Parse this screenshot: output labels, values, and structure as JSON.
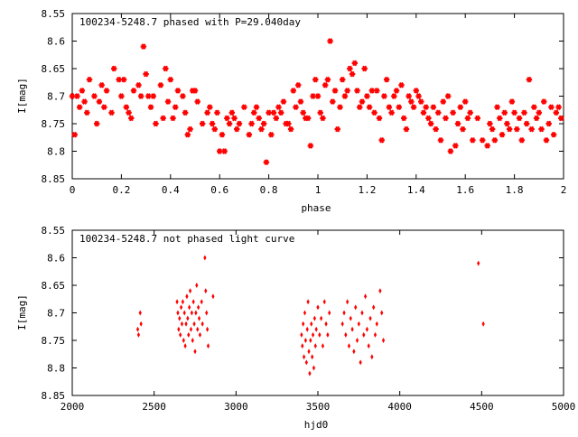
{
  "colors": {
    "points": "#ff0000",
    "axes": "#000000",
    "background": "#ffffff"
  },
  "chart_data": [
    {
      "type": "scatter",
      "title": "100234-5248.7 phased with P=29.040day",
      "xlabel": "phase",
      "ylabel": "I[mag]",
      "xlim": [
        0,
        2
      ],
      "ylim": [
        8.85,
        8.55
      ],
      "y_inverted": true,
      "grid": false,
      "xticks": [
        "0",
        "0.2",
        "0.4",
        "0.6",
        "0.8",
        "1",
        "1.2",
        "1.4",
        "1.6",
        "1.8",
        "2"
      ],
      "yticks": [
        "8.55",
        "8.6",
        "8.65",
        "8.7",
        "8.75",
        "8.8",
        "8.85"
      ],
      "points": [
        [
          0.0,
          8.7
        ],
        [
          0.01,
          8.77
        ],
        [
          0.02,
          8.7
        ],
        [
          0.03,
          8.72
        ],
        [
          0.04,
          8.69
        ],
        [
          0.05,
          8.71
        ],
        [
          0.06,
          8.73
        ],
        [
          0.07,
          8.67
        ],
        [
          0.09,
          8.7
        ],
        [
          0.1,
          8.75
        ],
        [
          0.11,
          8.71
        ],
        [
          0.12,
          8.68
        ],
        [
          0.13,
          8.72
        ],
        [
          0.14,
          8.69
        ],
        [
          0.16,
          8.73
        ],
        [
          0.17,
          8.65
        ],
        [
          0.19,
          8.67
        ],
        [
          0.2,
          8.7
        ],
        [
          0.21,
          8.67
        ],
        [
          0.22,
          8.72
        ],
        [
          0.23,
          8.73
        ],
        [
          0.24,
          8.74
        ],
        [
          0.25,
          8.69
        ],
        [
          0.27,
          8.68
        ],
        [
          0.28,
          8.7
        ],
        [
          0.29,
          8.61
        ],
        [
          0.3,
          8.66
        ],
        [
          0.31,
          8.7
        ],
        [
          0.32,
          8.72
        ],
        [
          0.33,
          8.7
        ],
        [
          0.34,
          8.75
        ],
        [
          0.36,
          8.68
        ],
        [
          0.37,
          8.74
        ],
        [
          0.38,
          8.65
        ],
        [
          0.39,
          8.71
        ],
        [
          0.4,
          8.67
        ],
        [
          0.41,
          8.74
        ],
        [
          0.42,
          8.72
        ],
        [
          0.43,
          8.69
        ],
        [
          0.45,
          8.7
        ],
        [
          0.46,
          8.73
        ],
        [
          0.47,
          8.77
        ],
        [
          0.48,
          8.76
        ],
        [
          0.49,
          8.69
        ],
        [
          0.5,
          8.69
        ],
        [
          0.51,
          8.71
        ],
        [
          0.53,
          8.75
        ],
        [
          0.55,
          8.73
        ],
        [
          0.56,
          8.72
        ],
        [
          0.57,
          8.75
        ],
        [
          0.58,
          8.76
        ],
        [
          0.59,
          8.73
        ],
        [
          0.6,
          8.8
        ],
        [
          0.61,
          8.77
        ],
        [
          0.62,
          8.8
        ],
        [
          0.63,
          8.74
        ],
        [
          0.64,
          8.75
        ],
        [
          0.65,
          8.73
        ],
        [
          0.66,
          8.74
        ],
        [
          0.67,
          8.76
        ],
        [
          0.68,
          8.75
        ],
        [
          0.7,
          8.72
        ],
        [
          0.72,
          8.77
        ],
        [
          0.73,
          8.75
        ],
        [
          0.74,
          8.73
        ],
        [
          0.75,
          8.72
        ],
        [
          0.76,
          8.74
        ],
        [
          0.77,
          8.76
        ],
        [
          0.78,
          8.75
        ],
        [
          0.79,
          8.82
        ],
        [
          0.8,
          8.73
        ],
        [
          0.81,
          8.77
        ],
        [
          0.82,
          8.73
        ],
        [
          0.83,
          8.74
        ],
        [
          0.84,
          8.72
        ],
        [
          0.85,
          8.73
        ],
        [
          0.86,
          8.71
        ],
        [
          0.87,
          8.75
        ],
        [
          0.88,
          8.75
        ],
        [
          0.89,
          8.76
        ],
        [
          0.9,
          8.69
        ],
        [
          0.91,
          8.72
        ],
        [
          0.92,
          8.68
        ],
        [
          0.93,
          8.71
        ],
        [
          0.94,
          8.73
        ],
        [
          0.95,
          8.74
        ],
        [
          0.96,
          8.74
        ],
        [
          0.97,
          8.79
        ],
        [
          0.98,
          8.7
        ],
        [
          0.99,
          8.67
        ],
        [
          1.0,
          8.7
        ],
        [
          1.01,
          8.73
        ],
        [
          1.02,
          8.74
        ],
        [
          1.03,
          8.68
        ],
        [
          1.04,
          8.67
        ],
        [
          1.05,
          8.6
        ],
        [
          1.06,
          8.71
        ],
        [
          1.07,
          8.69
        ],
        [
          1.08,
          8.76
        ],
        [
          1.09,
          8.72
        ],
        [
          1.1,
          8.67
        ],
        [
          1.11,
          8.7
        ],
        [
          1.12,
          8.69
        ],
        [
          1.13,
          8.65
        ],
        [
          1.14,
          8.66
        ],
        [
          1.15,
          8.64
        ],
        [
          1.16,
          8.69
        ],
        [
          1.17,
          8.72
        ],
        [
          1.18,
          8.71
        ],
        [
          1.19,
          8.65
        ],
        [
          1.2,
          8.7
        ],
        [
          1.21,
          8.72
        ],
        [
          1.22,
          8.69
        ],
        [
          1.23,
          8.73
        ],
        [
          1.24,
          8.69
        ],
        [
          1.25,
          8.74
        ],
        [
          1.26,
          8.78
        ],
        [
          1.27,
          8.7
        ],
        [
          1.28,
          8.67
        ],
        [
          1.29,
          8.72
        ],
        [
          1.3,
          8.73
        ],
        [
          1.31,
          8.7
        ],
        [
          1.32,
          8.69
        ],
        [
          1.33,
          8.72
        ],
        [
          1.34,
          8.68
        ],
        [
          1.35,
          8.74
        ],
        [
          1.36,
          8.76
        ],
        [
          1.37,
          8.7
        ],
        [
          1.38,
          8.71
        ],
        [
          1.39,
          8.72
        ],
        [
          1.4,
          8.69
        ],
        [
          1.41,
          8.7
        ],
        [
          1.42,
          8.71
        ],
        [
          1.43,
          8.73
        ],
        [
          1.44,
          8.72
        ],
        [
          1.45,
          8.74
        ],
        [
          1.46,
          8.75
        ],
        [
          1.47,
          8.72
        ],
        [
          1.48,
          8.76
        ],
        [
          1.49,
          8.73
        ],
        [
          1.5,
          8.78
        ],
        [
          1.51,
          8.71
        ],
        [
          1.52,
          8.74
        ],
        [
          1.53,
          8.7
        ],
        [
          1.54,
          8.8
        ],
        [
          1.55,
          8.73
        ],
        [
          1.56,
          8.79
        ],
        [
          1.57,
          8.75
        ],
        [
          1.58,
          8.72
        ],
        [
          1.59,
          8.76
        ],
        [
          1.6,
          8.71
        ],
        [
          1.61,
          8.74
        ],
        [
          1.62,
          8.73
        ],
        [
          1.63,
          8.78
        ],
        [
          1.65,
          8.74
        ],
        [
          1.67,
          8.78
        ],
        [
          1.69,
          8.79
        ],
        [
          1.7,
          8.75
        ],
        [
          1.71,
          8.76
        ],
        [
          1.72,
          8.78
        ],
        [
          1.73,
          8.72
        ],
        [
          1.74,
          8.74
        ],
        [
          1.75,
          8.77
        ],
        [
          1.76,
          8.73
        ],
        [
          1.77,
          8.75
        ],
        [
          1.78,
          8.76
        ],
        [
          1.79,
          8.71
        ],
        [
          1.8,
          8.73
        ],
        [
          1.81,
          8.76
        ],
        [
          1.82,
          8.74
        ],
        [
          1.83,
          8.78
        ],
        [
          1.84,
          8.73
        ],
        [
          1.85,
          8.75
        ],
        [
          1.86,
          8.67
        ],
        [
          1.87,
          8.76
        ],
        [
          1.88,
          8.72
        ],
        [
          1.89,
          8.74
        ],
        [
          1.9,
          8.73
        ],
        [
          1.91,
          8.76
        ],
        [
          1.92,
          8.71
        ],
        [
          1.93,
          8.78
        ],
        [
          1.94,
          8.75
        ],
        [
          1.95,
          8.72
        ],
        [
          1.96,
          8.77
        ],
        [
          1.97,
          8.73
        ],
        [
          1.98,
          8.72
        ],
        [
          1.99,
          8.74
        ]
      ]
    },
    {
      "type": "scatter",
      "title": "100234-5248.7 not phased light curve",
      "xlabel": "hjd0",
      "ylabel": "I[mag]",
      "xlim": [
        2000,
        5000
      ],
      "ylim": [
        8.85,
        8.55
      ],
      "y_inverted": true,
      "grid": false,
      "xticks": [
        "2000",
        "2500",
        "3000",
        "3500",
        "4000",
        "4500",
        "5000"
      ],
      "yticks": [
        "8.55",
        "8.6",
        "8.65",
        "8.7",
        "8.75",
        "8.8",
        "8.85"
      ],
      "points": [
        [
          2400,
          8.73
        ],
        [
          2405,
          8.74
        ],
        [
          2415,
          8.7
        ],
        [
          2420,
          8.72
        ],
        [
          2640,
          8.68
        ],
        [
          2645,
          8.7
        ],
        [
          2650,
          8.73
        ],
        [
          2655,
          8.71
        ],
        [
          2660,
          8.74
        ],
        [
          2665,
          8.69
        ],
        [
          2670,
          8.72
        ],
        [
          2675,
          8.68
        ],
        [
          2680,
          8.75
        ],
        [
          2685,
          8.7
        ],
        [
          2690,
          8.76
        ],
        [
          2695,
          8.72
        ],
        [
          2700,
          8.67
        ],
        [
          2705,
          8.71
        ],
        [
          2710,
          8.74
        ],
        [
          2715,
          8.69
        ],
        [
          2720,
          8.66
        ],
        [
          2725,
          8.73
        ],
        [
          2730,
          8.7
        ],
        [
          2735,
          8.75
        ],
        [
          2740,
          8.68
        ],
        [
          2745,
          8.72
        ],
        [
          2750,
          8.77
        ],
        [
          2755,
          8.7
        ],
        [
          2760,
          8.65
        ],
        [
          2765,
          8.73
        ],
        [
          2770,
          8.69
        ],
        [
          2775,
          8.71
        ],
        [
          2780,
          8.74
        ],
        [
          2790,
          8.68
        ],
        [
          2795,
          8.72
        ],
        [
          2810,
          8.6
        ],
        [
          2815,
          8.66
        ],
        [
          2820,
          8.7
        ],
        [
          2825,
          8.73
        ],
        [
          2830,
          8.76
        ],
        [
          2860,
          8.67
        ],
        [
          3400,
          8.74
        ],
        [
          3405,
          8.76
        ],
        [
          3410,
          8.72
        ],
        [
          3415,
          8.78
        ],
        [
          3420,
          8.7
        ],
        [
          3425,
          8.75
        ],
        [
          3430,
          8.79
        ],
        [
          3435,
          8.73
        ],
        [
          3440,
          8.68
        ],
        [
          3445,
          8.77
        ],
        [
          3450,
          8.81
        ],
        [
          3455,
          8.75
        ],
        [
          3460,
          8.72
        ],
        [
          3465,
          8.78
        ],
        [
          3470,
          8.74
        ],
        [
          3475,
          8.8
        ],
        [
          3480,
          8.71
        ],
        [
          3485,
          8.76
        ],
        [
          3490,
          8.73
        ],
        [
          3500,
          8.69
        ],
        [
          3510,
          8.74
        ],
        [
          3520,
          8.71
        ],
        [
          3530,
          8.76
        ],
        [
          3540,
          8.68
        ],
        [
          3550,
          8.72
        ],
        [
          3560,
          8.74
        ],
        [
          3570,
          8.7
        ],
        [
          3650,
          8.72
        ],
        [
          3660,
          8.7
        ],
        [
          3670,
          8.74
        ],
        [
          3680,
          8.68
        ],
        [
          3690,
          8.76
        ],
        [
          3700,
          8.71
        ],
        [
          3710,
          8.73
        ],
        [
          3720,
          8.77
        ],
        [
          3730,
          8.69
        ],
        [
          3740,
          8.75
        ],
        [
          3750,
          8.72
        ],
        [
          3760,
          8.79
        ],
        [
          3770,
          8.7
        ],
        [
          3780,
          8.74
        ],
        [
          3790,
          8.67
        ],
        [
          3800,
          8.73
        ],
        [
          3810,
          8.76
        ],
        [
          3820,
          8.71
        ],
        [
          3830,
          8.78
        ],
        [
          3840,
          8.69
        ],
        [
          3850,
          8.74
        ],
        [
          3860,
          8.72
        ],
        [
          3880,
          8.66
        ],
        [
          3890,
          8.7
        ],
        [
          3900,
          8.75
        ],
        [
          4480,
          8.61
        ],
        [
          4510,
          8.72
        ]
      ]
    }
  ]
}
